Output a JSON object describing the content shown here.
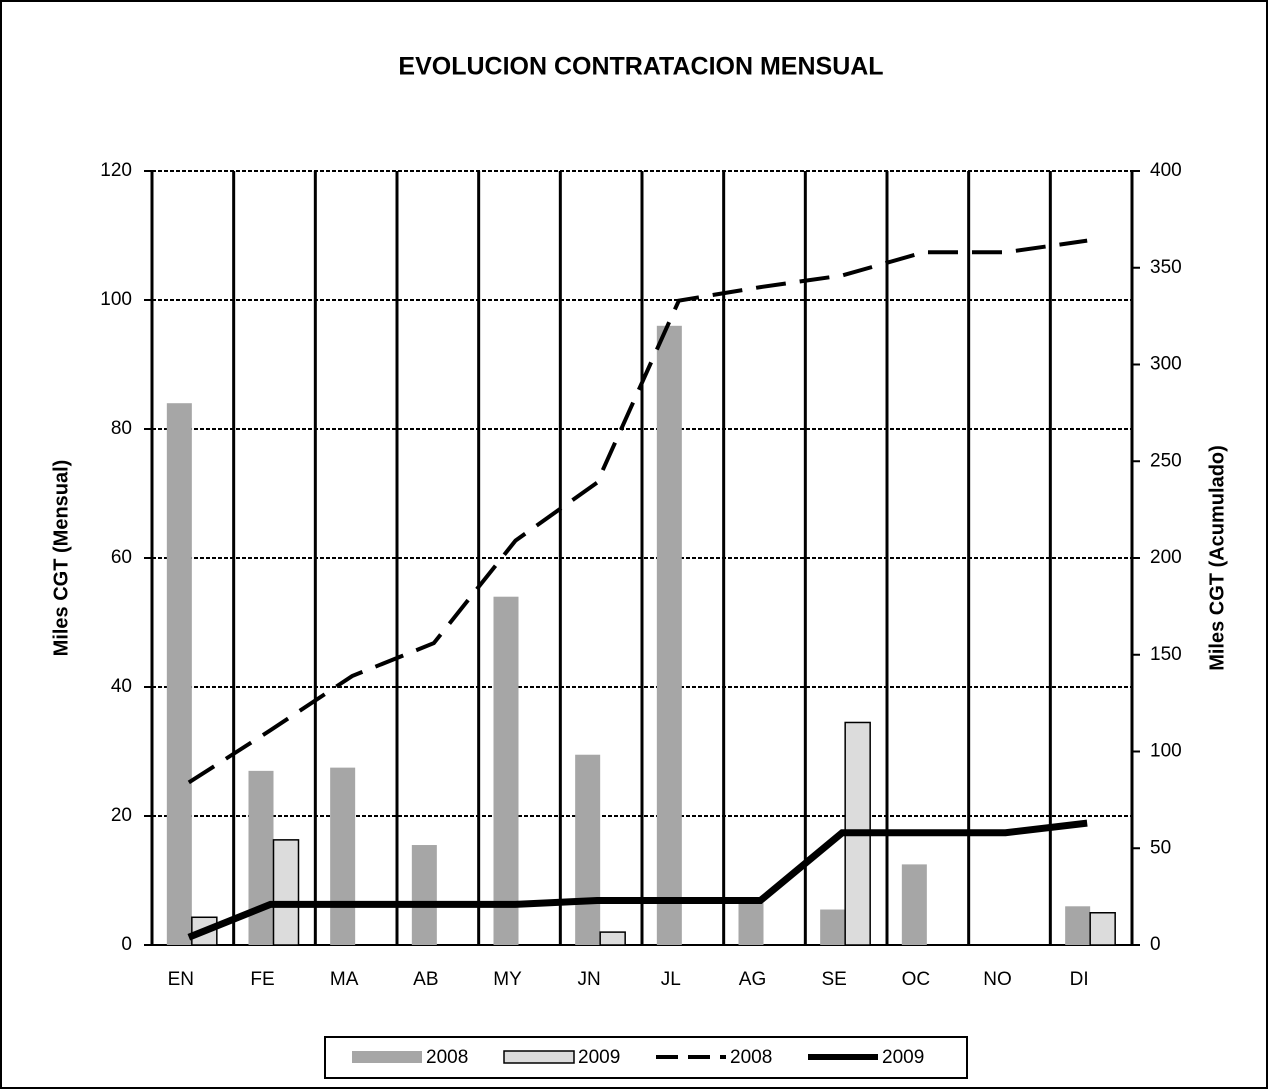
{
  "chart_data": {
    "type": "bar_line",
    "title": "EVOLUCION CONTRATACION MENSUAL",
    "y_label": "Miles CGT (Mensual)",
    "y2_label": "Miles CGT (Acumulado)",
    "categories": [
      "EN",
      "FE",
      "MA",
      "AB",
      "MY",
      "JN",
      "JL",
      "AG",
      "SE",
      "OC",
      "NO",
      "DI"
    ],
    "series": [
      {
        "name": "2008",
        "kind": "bar",
        "color": "#a6a6a6",
        "values": [
          84,
          27,
          27.5,
          15.5,
          54,
          29.5,
          96,
          6.5,
          5.5,
          12.5,
          0,
          6
        ]
      },
      {
        "name": "2009",
        "kind": "bar",
        "color": "#dcdcdc",
        "values": [
          4.3,
          16.3,
          0,
          0,
          0,
          2,
          0,
          0,
          34.5,
          0,
          0,
          5
        ]
      },
      {
        "name": "2008",
        "kind": "line",
        "axis": "y2",
        "color": "#000000",
        "dashed": true,
        "values": [
          84,
          111,
          139,
          156,
          209,
          239,
          333,
          340,
          346,
          358,
          358,
          364
        ]
      },
      {
        "name": "2009",
        "kind": "line",
        "axis": "y2",
        "color": "#000000",
        "dashed": false,
        "values": [
          4,
          21,
          21,
          21,
          21,
          23,
          23,
          23,
          58,
          58,
          58,
          63
        ]
      }
    ],
    "ylim": [
      0,
      120
    ],
    "yticks": [
      0,
      20,
      40,
      60,
      80,
      100,
      120
    ],
    "y2lim": [
      0,
      400
    ],
    "y2ticks": [
      0,
      50,
      100,
      150,
      200,
      250,
      300,
      350,
      400
    ],
    "grid": true,
    "legend": "bottom"
  }
}
